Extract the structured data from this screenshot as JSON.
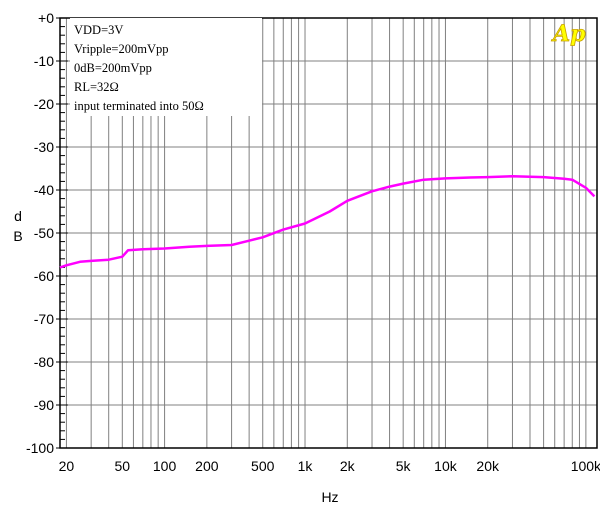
{
  "chart_data": {
    "type": "line",
    "title": "",
    "xlabel": "Hz",
    "ylabel": "dB",
    "xscale": "log",
    "xlim": [
      18,
      120000
    ],
    "ylim": [
      -100,
      0
    ],
    "grid": true,
    "x_ticks": [
      {
        "value": 20,
        "label": "20"
      },
      {
        "value": 50,
        "label": "50"
      },
      {
        "value": 100,
        "label": "100"
      },
      {
        "value": 200,
        "label": "200"
      },
      {
        "value": 500,
        "label": "500"
      },
      {
        "value": 1000,
        "label": "1k"
      },
      {
        "value": 2000,
        "label": "2k"
      },
      {
        "value": 5000,
        "label": "5k"
      },
      {
        "value": 10000,
        "label": "10k"
      },
      {
        "value": 20000,
        "label": "20k"
      },
      {
        "value": 100000,
        "label": "100k"
      }
    ],
    "y_ticks": [
      {
        "value": 0,
        "label": "+0"
      },
      {
        "value": -10,
        "label": "-10"
      },
      {
        "value": -20,
        "label": "-20"
      },
      {
        "value": -30,
        "label": "-30"
      },
      {
        "value": -40,
        "label": "-40"
      },
      {
        "value": -50,
        "label": "-50"
      },
      {
        "value": -60,
        "label": "-60"
      },
      {
        "value": -70,
        "label": "-70"
      },
      {
        "value": -80,
        "label": "-80"
      },
      {
        "value": -90,
        "label": "-90"
      },
      {
        "value": -100,
        "label": "-100"
      }
    ],
    "annotations": [
      "VDD=3V",
      "Vripple=200mVpp",
      "0dB=200mVpp",
      "RL=32Ω",
      "input terminated into 50Ω"
    ],
    "logo": "Ap",
    "series": [
      {
        "color": "#ff00ff",
        "points": [
          [
            18,
            -58
          ],
          [
            20,
            -57.5
          ],
          [
            25,
            -56.7
          ],
          [
            30,
            -56.5
          ],
          [
            40,
            -56.2
          ],
          [
            50,
            -55.5
          ],
          [
            55,
            -54
          ],
          [
            70,
            -53.8
          ],
          [
            100,
            -53.6
          ],
          [
            150,
            -53.2
          ],
          [
            200,
            -53.0
          ],
          [
            300,
            -52.8
          ],
          [
            400,
            -51.8
          ],
          [
            500,
            -51.0
          ],
          [
            700,
            -49.2
          ],
          [
            1000,
            -47.8
          ],
          [
            1500,
            -45.0
          ],
          [
            2000,
            -42.5
          ],
          [
            3000,
            -40.3
          ],
          [
            4000,
            -39.2
          ],
          [
            5000,
            -38.5
          ],
          [
            7000,
            -37.6
          ],
          [
            10000,
            -37.3
          ],
          [
            15000,
            -37.1
          ],
          [
            20000,
            -37.0
          ],
          [
            30000,
            -36.8
          ],
          [
            50000,
            -37.0
          ],
          [
            70000,
            -37.4
          ],
          [
            80000,
            -37.6
          ],
          [
            100000,
            -39.5
          ],
          [
            115000,
            -41.5
          ]
        ]
      }
    ],
    "colors": {
      "line": "#ff00ff",
      "grid": "#808080",
      "logo": "#ffff00",
      "logo_outline": "#c8a000"
    }
  }
}
